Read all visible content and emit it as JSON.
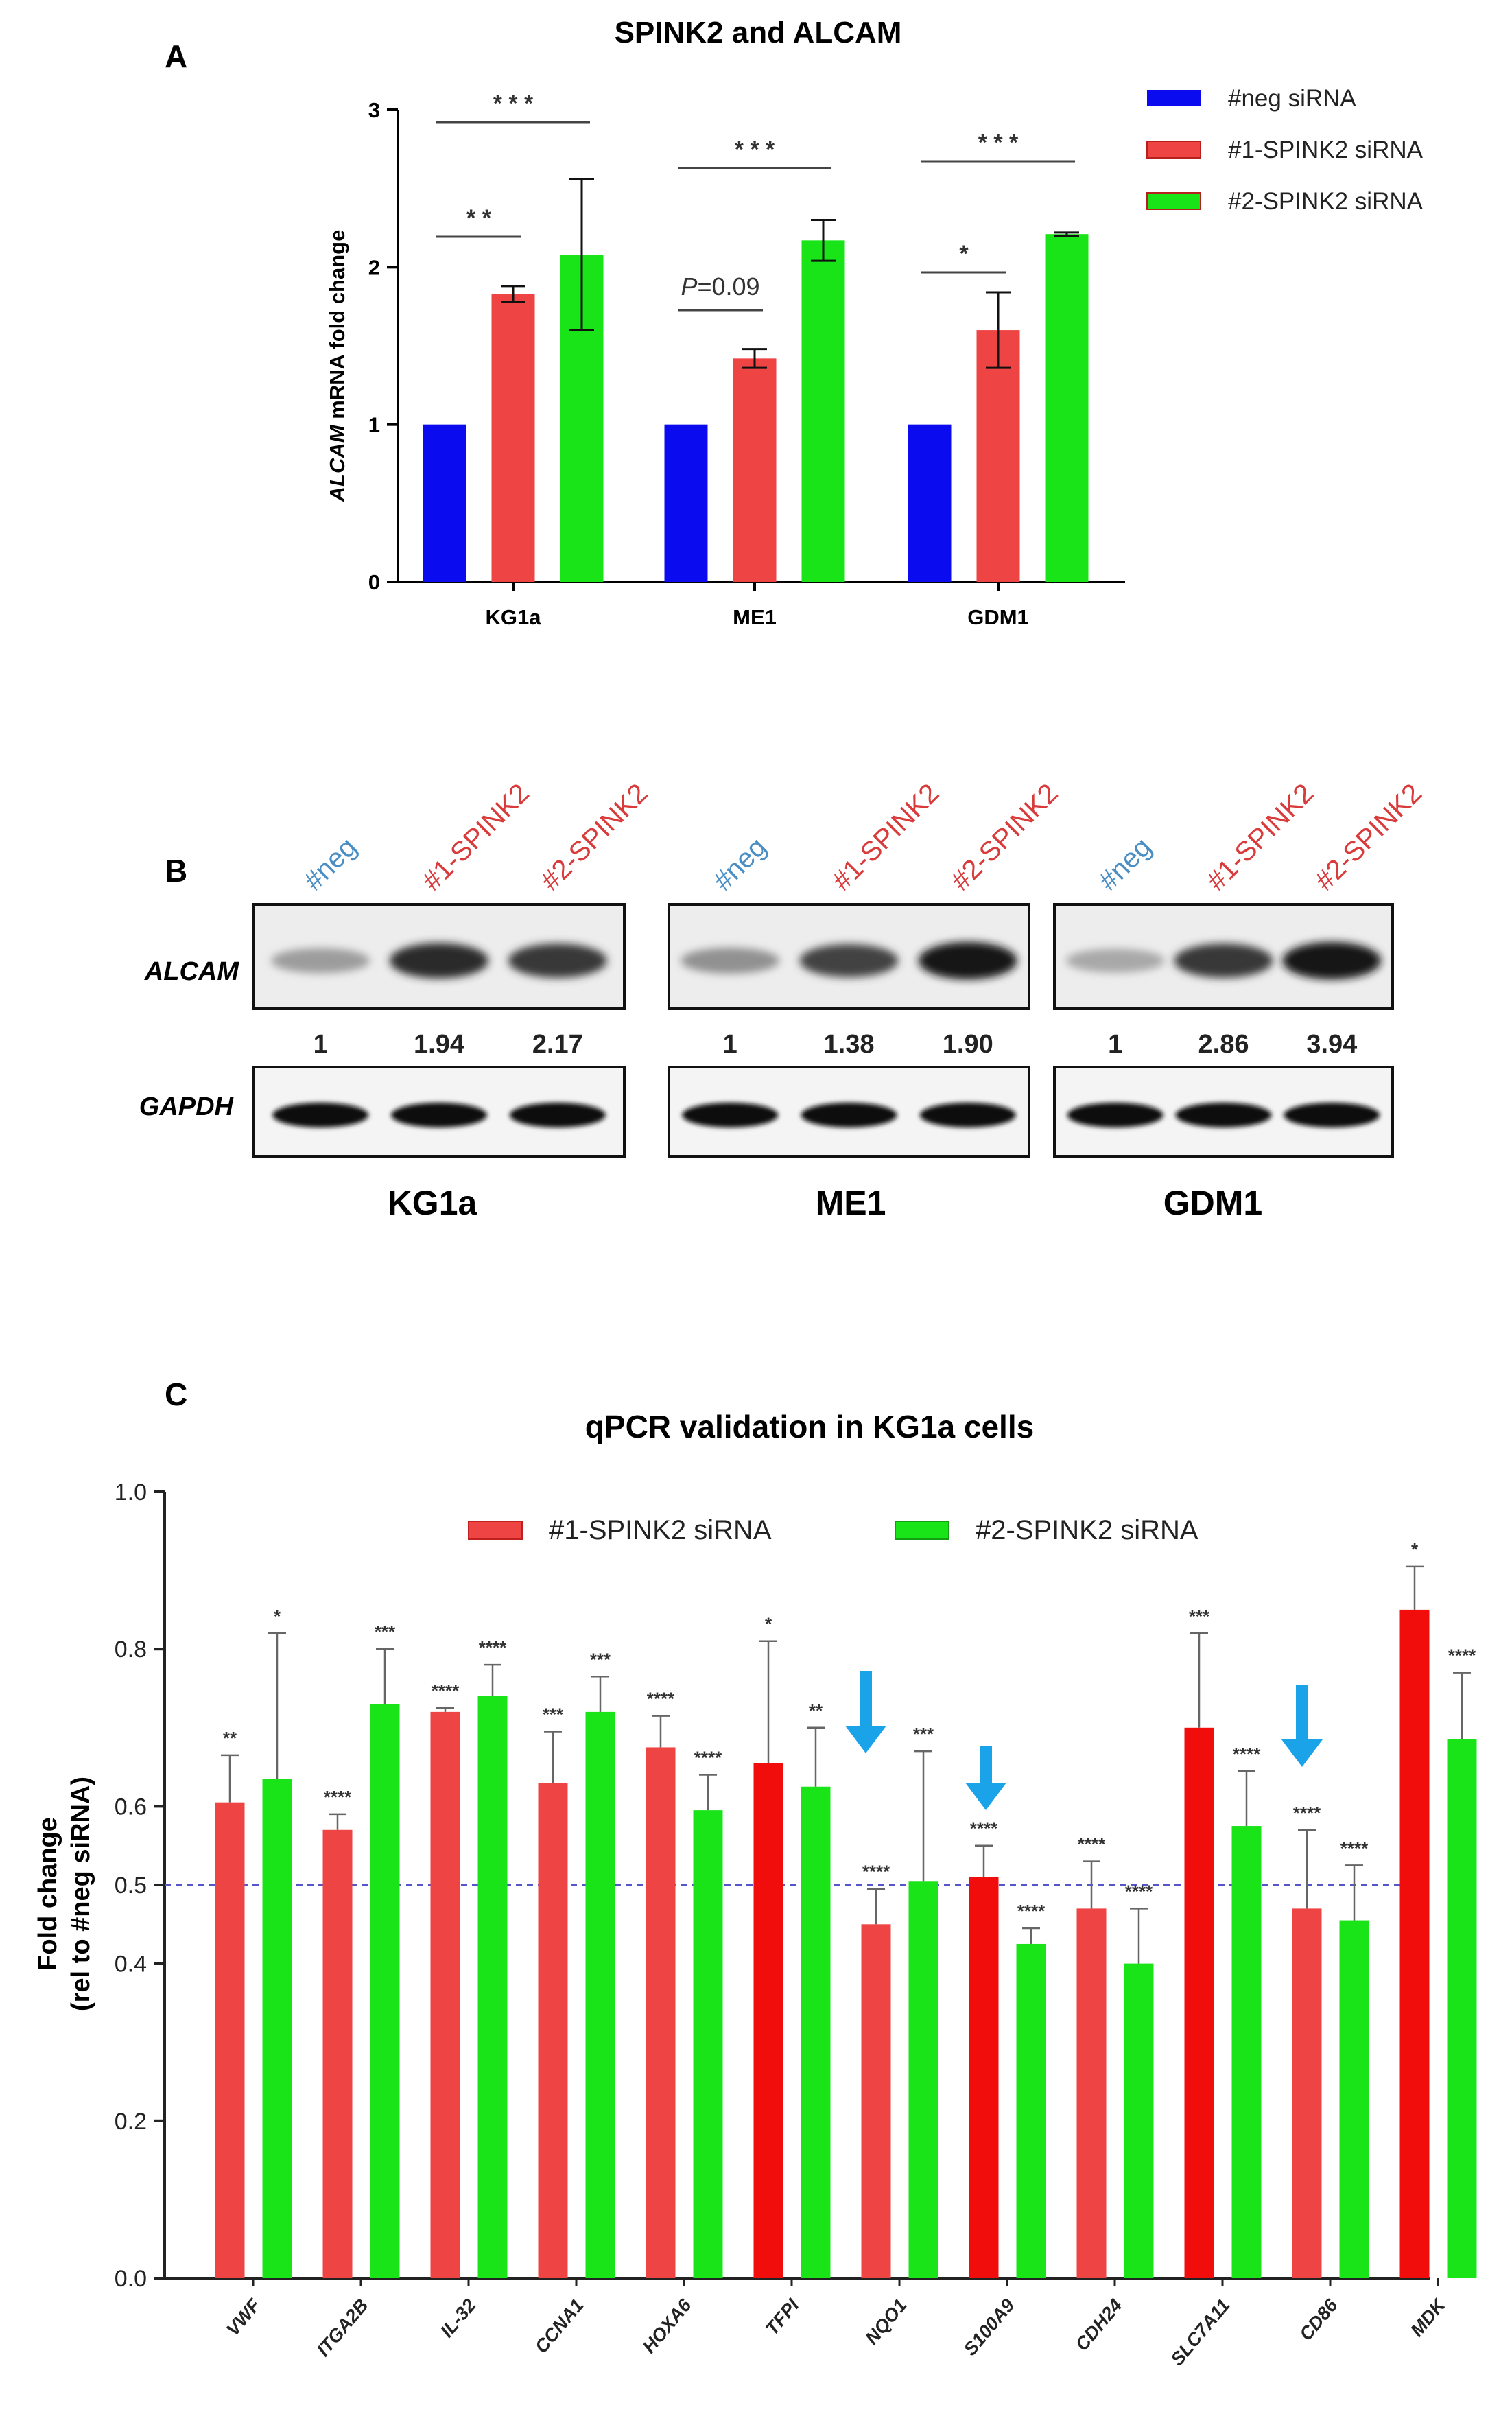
{
  "colors": {
    "neg": "#0b0bef",
    "s1": "#ef4444",
    "s1_dark": "#f20d0d",
    "s2": "#18e418",
    "refline": "#5555cc",
    "arrow": "#1aa3e8",
    "lane_neg": "#4a8ec4",
    "lane_si": "#d93a3a"
  },
  "panelA": {
    "letter": "A",
    "title": "SPINK2 and ALCAM",
    "ylabel_italic": "ALCAM",
    "ylabel_rest": " mRNA fold change",
    "legend": [
      "#neg siRNA",
      "#1-SPINK2 siRNA",
      "#2-SPINK2 siRNA"
    ],
    "annotations": [
      {
        "label": "* * *",
        "group": 0
      },
      {
        "label": "* *",
        "group": 0
      },
      {
        "label": "* * *",
        "group": 1
      },
      {
        "label": "P=0.09",
        "group": 1
      },
      {
        "label": "* * *",
        "group": 2
      },
      {
        "label": "*",
        "group": 2
      }
    ]
  },
  "chart_data": [
    {
      "type": "bar",
      "title": "SPINK2 and ALCAM",
      "xlabel": "",
      "ylabel": "ALCAM mRNA fold change",
      "ylim": [
        0,
        3
      ],
      "yticks": [
        "0",
        "1",
        "2",
        "3"
      ],
      "categories": [
        "KG1a",
        "ME1",
        "GDM1"
      ],
      "series": [
        {
          "name": "#neg siRNA",
          "values": [
            1.0,
            1.0,
            1.0
          ],
          "errors": [
            0,
            0,
            0
          ]
        },
        {
          "name": "#1-SPINK2 siRNA",
          "values": [
            1.83,
            1.42,
            1.6
          ],
          "errors": [
            0.05,
            0.06,
            0.24
          ]
        },
        {
          "name": "#2-SPINK2 siRNA",
          "values": [
            2.08,
            2.17,
            2.21
          ],
          "errors": [
            0.48,
            0.13,
            0.01
          ]
        }
      ]
    },
    {
      "type": "bar",
      "title": "qPCR validation in KG1a cells",
      "xlabel": "",
      "ylabel": "Fold change (rel to #neg siRNA)",
      "ylim": [
        0,
        1.0
      ],
      "yticks": [
        "0.0",
        "0.2",
        "0.4",
        "0.5",
        "0.6",
        "0.8",
        "1.0"
      ],
      "reference_line": 0.5,
      "legend": [
        "#1-SPINK2 siRNA",
        "#2-SPINK2 siRNA"
      ],
      "categories": [
        "VWF",
        "ITGA2B",
        "IL-32",
        "CCNA1",
        "HOXA6",
        "TFPI",
        "NQO1",
        "S100A9",
        "CDH24",
        "SLC7A11",
        "CD86",
        "MDK"
      ],
      "series": [
        {
          "name": "#1-SPINK2 siRNA",
          "values": [
            0.605,
            0.57,
            0.72,
            0.63,
            0.675,
            0.655,
            0.45,
            0.51,
            0.47,
            0.7,
            0.47,
            0.85
          ],
          "errors": [
            0.06,
            0.02,
            0.005,
            0.065,
            0.04,
            0.155,
            0.045,
            0.04,
            0.06,
            0.12,
            0.1,
            0.055
          ],
          "significance": [
            "**",
            "****",
            "****",
            "***",
            "****",
            "*",
            "****",
            "****",
            "****",
            "***",
            "****",
            "*"
          ]
        },
        {
          "name": "#2-SPINK2 siRNA",
          "values": [
            0.635,
            0.73,
            0.74,
            0.72,
            0.595,
            0.625,
            0.505,
            0.425,
            0.4,
            0.575,
            0.455,
            0.685
          ],
          "errors": [
            0.185,
            0.07,
            0.04,
            0.045,
            0.045,
            0.075,
            0.165,
            0.02,
            0.07,
            0.07,
            0.07,
            0.085
          ],
          "significance": [
            "*",
            "***",
            "****",
            "***",
            "****",
            "**",
            "***",
            "****",
            "****",
            "****",
            "****",
            "****"
          ]
        }
      ],
      "highlighted_bars": [
        5,
        7,
        9,
        11
      ],
      "arrows_over": [
        "NQO1",
        "S100A9",
        "CD86"
      ]
    }
  ],
  "panelB": {
    "letter": "B",
    "rows": [
      "ALCAM",
      "GAPDH"
    ],
    "groups": [
      {
        "cell": "KG1a",
        "lanes": [
          "#neg",
          "#1-SPINK2",
          "#2-SPINK2"
        ],
        "quant": [
          "1",
          "1.94",
          "2.17"
        ]
      },
      {
        "cell": "ME1",
        "lanes": [
          "#neg",
          "#1-SPINK2",
          "#2-SPINK2"
        ],
        "quant": [
          "1",
          "1.38",
          "1.90"
        ]
      },
      {
        "cell": "GDM1",
        "lanes": [
          "#neg",
          "#1-SPINK2",
          "#2-SPINK2"
        ],
        "quant": [
          "1",
          "2.86",
          "3.94"
        ]
      }
    ]
  },
  "panelC": {
    "letter": "C",
    "title": "qPCR validation in KG1a cells",
    "ylabel_line1": "Fold change",
    "ylabel_line2": "(rel to #neg siRNA)"
  }
}
